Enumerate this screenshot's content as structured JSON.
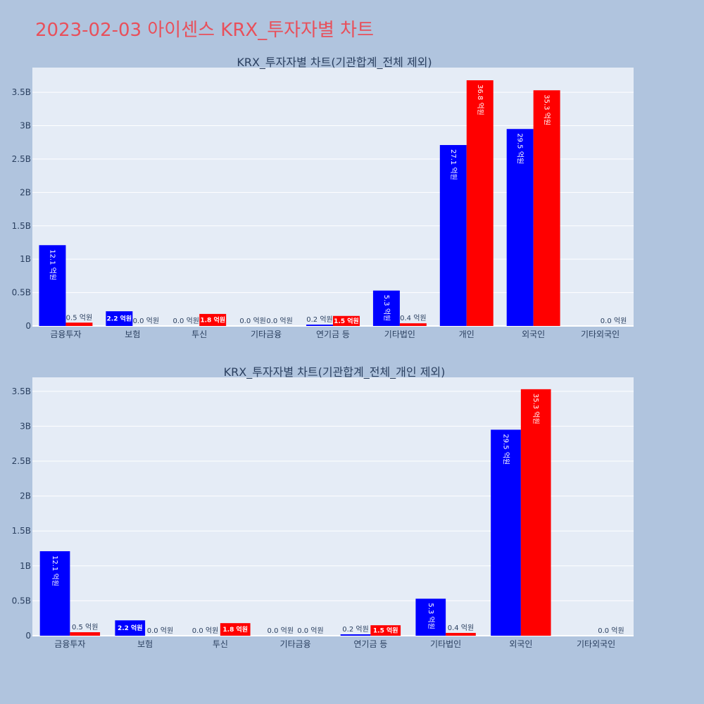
{
  "title": "2023-02-03 아이센스 KRX_투자자별 차트",
  "colors": {
    "buy": "#0000ff",
    "sell": "#ff0000",
    "plot_bg": "#e5ecf6",
    "page_bg": "#b0c4de",
    "title": "#e8505b"
  },
  "chart_data": [
    {
      "type": "bar",
      "title": "KRX_투자자별 차트(기관합계_전체 제외)",
      "categories": [
        "금융투자",
        "보험",
        "투신",
        "기타금융",
        "연기금 등",
        "기타법인",
        "개인",
        "외국인",
        "기타외국인"
      ],
      "series": [
        {
          "color": "#0000ff",
          "values": [
            1.21,
            0.22,
            0.0,
            0.0,
            0.02,
            0.53,
            2.71,
            2.95,
            0.0
          ],
          "labels": [
            "12.1 억원",
            "2.2 억원",
            "0.0 억원",
            "0.0 억원",
            "0.2 억원",
            "5.3 억원",
            "27.1 억원",
            "29.5 억원",
            ""
          ]
        },
        {
          "color": "#ff0000",
          "values": [
            0.05,
            0.0,
            0.18,
            0.0,
            0.15,
            0.04,
            3.68,
            3.53,
            0.0
          ],
          "labels": [
            "0.5 억원",
            "0.0 억원",
            "1.8 억원",
            "0.0 억원",
            "1.5 억원",
            "0.4 억원",
            "36.8 억원",
            "35.3 억원",
            "0.0 억원"
          ]
        }
      ],
      "y_unit": "B",
      "ylim": [
        0,
        3.87
      ],
      "yticks": [
        0,
        0.5,
        1,
        1.5,
        2,
        2.5,
        3,
        3.5
      ],
      "ytick_labels": [
        "0",
        "0.5B",
        "1B",
        "1.5B",
        "2B",
        "2.5B",
        "3B",
        "3.5B"
      ],
      "grid": true,
      "legend": "none"
    },
    {
      "type": "bar",
      "title": "KRX_투자자별 차트(기관합계_전체_개인 제외)",
      "categories": [
        "금융투자",
        "보험",
        "투신",
        "기타금융",
        "연기금 등",
        "기타법인",
        "외국인",
        "기타외국인"
      ],
      "series": [
        {
          "color": "#0000ff",
          "values": [
            1.21,
            0.22,
            0.0,
            0.0,
            0.02,
            0.53,
            2.95,
            0.0
          ],
          "labels": [
            "12.1 억원",
            "2.2 억원",
            "0.0 억원",
            "0.0 억원",
            "0.2 억원",
            "5.3 억원",
            "29.5 억원",
            ""
          ]
        },
        {
          "color": "#ff0000",
          "values": [
            0.05,
            0.0,
            0.18,
            0.0,
            0.15,
            0.04,
            3.53,
            0.0
          ],
          "labels": [
            "0.5 억원",
            "0.0 억원",
            "1.8 억원",
            "0.0 억원",
            "1.5 억원",
            "0.4 억원",
            "35.3 억원",
            "0.0 억원"
          ]
        }
      ],
      "y_unit": "B",
      "ylim": [
        0,
        3.7
      ],
      "yticks": [
        0,
        0.5,
        1,
        1.5,
        2,
        2.5,
        3,
        3.5
      ],
      "ytick_labels": [
        "0",
        "0.5B",
        "1B",
        "1.5B",
        "2B",
        "2.5B",
        "3B",
        "3.5B"
      ],
      "grid": true,
      "legend": "none"
    }
  ]
}
